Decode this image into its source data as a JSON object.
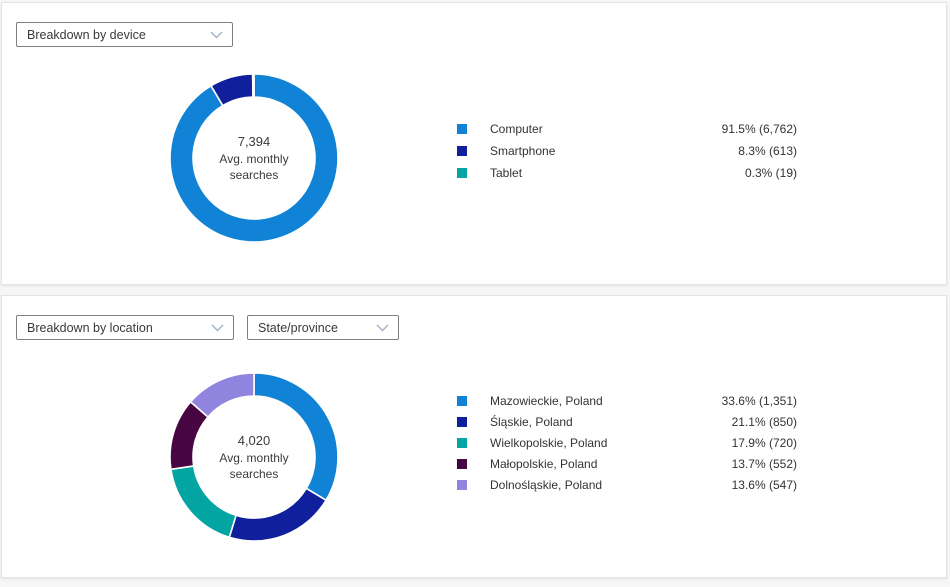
{
  "panels": [
    {
      "name": "breakdown-by-device",
      "controls": [
        {
          "type": "dropdown",
          "value": "Breakdown by device"
        }
      ]
    },
    {
      "name": "breakdown-by-location",
      "controls": [
        {
          "type": "dropdown",
          "value": "Breakdown by location"
        },
        {
          "type": "dropdown",
          "value": "State/province"
        }
      ]
    }
  ],
  "chart_data": [
    {
      "type": "pie",
      "subtype": "donut",
      "legend_position": "right",
      "center_value": "7,394",
      "center_label": "Avg. monthly searches",
      "categories": [
        "Computer",
        "Smartphone",
        "Tablet"
      ],
      "values": [
        6762,
        613,
        19
      ],
      "percents": [
        91.5,
        8.3,
        0.3
      ],
      "value_displays": [
        "91.5% (6,762)",
        "8.3% (613)",
        "0.3% (19)"
      ],
      "colors": [
        "#1183d6",
        "#101f9c",
        "#02a5a2"
      ]
    },
    {
      "type": "pie",
      "subtype": "donut",
      "legend_position": "right",
      "center_value": "4,020",
      "center_label": "Avg. monthly searches",
      "categories": [
        "Mazowieckie, Poland",
        "Śląskie, Poland",
        "Wielkopolskie, Poland",
        "Małopolskie, Poland",
        "Dolnośląskie, Poland"
      ],
      "values": [
        1351,
        850,
        720,
        552,
        547
      ],
      "percents": [
        33.6,
        21.1,
        17.9,
        13.7,
        13.6
      ],
      "value_displays": [
        "33.6% (1,351)",
        "21.1% (850)",
        "17.9% (720)",
        "13.7% (552)",
        "13.6% (547)"
      ],
      "colors": [
        "#1183d6",
        "#101f9c",
        "#02a5a2",
        "#470542",
        "#9184de"
      ]
    }
  ]
}
